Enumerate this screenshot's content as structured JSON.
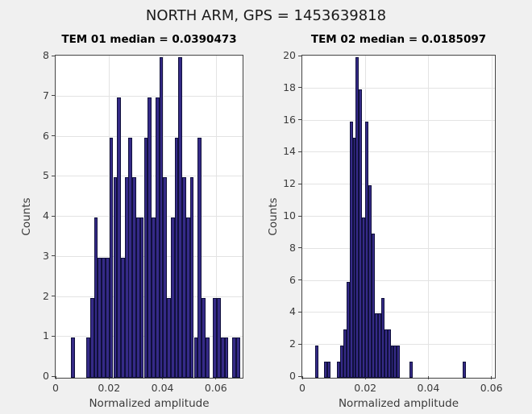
{
  "figure": {
    "title": "NORTH ARM, GPS = 1453639818"
  },
  "style": {
    "background": "#f0f0f0",
    "plot_background": "#ffffff",
    "grid_color": "#e3e3e3",
    "axis_color": "#444444",
    "text_color": "#3b3b3b",
    "bar_fill": "#352a87",
    "bar_edge": "#10103c"
  },
  "chart_data": [
    {
      "type": "bar",
      "title": "TEM 01 median = 0.0390473",
      "median": 0.0390473,
      "xlabel": "Normalized amplitude",
      "ylabel": "Counts",
      "xlim": [
        0,
        0.0694
      ],
      "ylim": [
        0,
        8
      ],
      "grid": true,
      "xticks": [
        0,
        0.02,
        0.04,
        0.06
      ],
      "xtick_labels": [
        "0",
        "0.02",
        "0.04",
        "0.06"
      ],
      "yticks": [
        0,
        1,
        2,
        3,
        4,
        5,
        6,
        7,
        8
      ],
      "ytick_labels": [
        "0",
        "1",
        "2",
        "3",
        "4",
        "5",
        "6",
        "7",
        "8"
      ],
      "bin_width": 0.0014375,
      "bin_centers": [
        0.0065,
        0.0122,
        0.0137,
        0.0151,
        0.0165,
        0.018,
        0.0194,
        0.0208,
        0.0223,
        0.0237,
        0.0252,
        0.0266,
        0.028,
        0.0295,
        0.0309,
        0.0323,
        0.0338,
        0.0352,
        0.0367,
        0.0381,
        0.0395,
        0.041,
        0.0424,
        0.0438,
        0.0453,
        0.0467,
        0.0482,
        0.0496,
        0.051,
        0.0525,
        0.0539,
        0.0553,
        0.0568,
        0.0597,
        0.0611,
        0.0625,
        0.064,
        0.0668,
        0.0683
      ],
      "counts": [
        1,
        1,
        2,
        4,
        3,
        3,
        3,
        6,
        5,
        7,
        3,
        5,
        6,
        5,
        4,
        4,
        6,
        7,
        4,
        7,
        8,
        5,
        2,
        4,
        6,
        8,
        5,
        4,
        5,
        1,
        6,
        2,
        1,
        2,
        2,
        1,
        1,
        1,
        1
      ]
    },
    {
      "type": "bar",
      "title": "TEM 02 median = 0.0185097",
      "median": 0.0185097,
      "xlabel": "Normalized amplitude",
      "ylabel": "Counts",
      "xlim": [
        0,
        0.0606
      ],
      "ylim": [
        0,
        20
      ],
      "grid": true,
      "xticks": [
        0,
        0.02,
        0.04,
        0.06
      ],
      "xtick_labels": [
        "0",
        "0.02",
        "0.04",
        "0.06"
      ],
      "yticks": [
        0,
        2,
        4,
        6,
        8,
        10,
        12,
        14,
        16,
        18,
        20
      ],
      "ytick_labels": [
        "0",
        "2",
        "4",
        "6",
        "8",
        "10",
        "12",
        "14",
        "16",
        "18",
        "20"
      ],
      "bin_width": 0.001,
      "bin_centers": [
        0.0045,
        0.0075,
        0.0085,
        0.0115,
        0.0125,
        0.0135,
        0.0145,
        0.0155,
        0.0165,
        0.0175,
        0.0185,
        0.0195,
        0.0205,
        0.0215,
        0.0225,
        0.0235,
        0.0245,
        0.0255,
        0.0265,
        0.0275,
        0.0285,
        0.0295,
        0.0305,
        0.0345,
        0.0515
      ],
      "counts": [
        2,
        1,
        1,
        1,
        2,
        3,
        6,
        16,
        15,
        20,
        18,
        10,
        16,
        12,
        9,
        4,
        4,
        5,
        3,
        3,
        2,
        2,
        2,
        1,
        1
      ]
    }
  ]
}
